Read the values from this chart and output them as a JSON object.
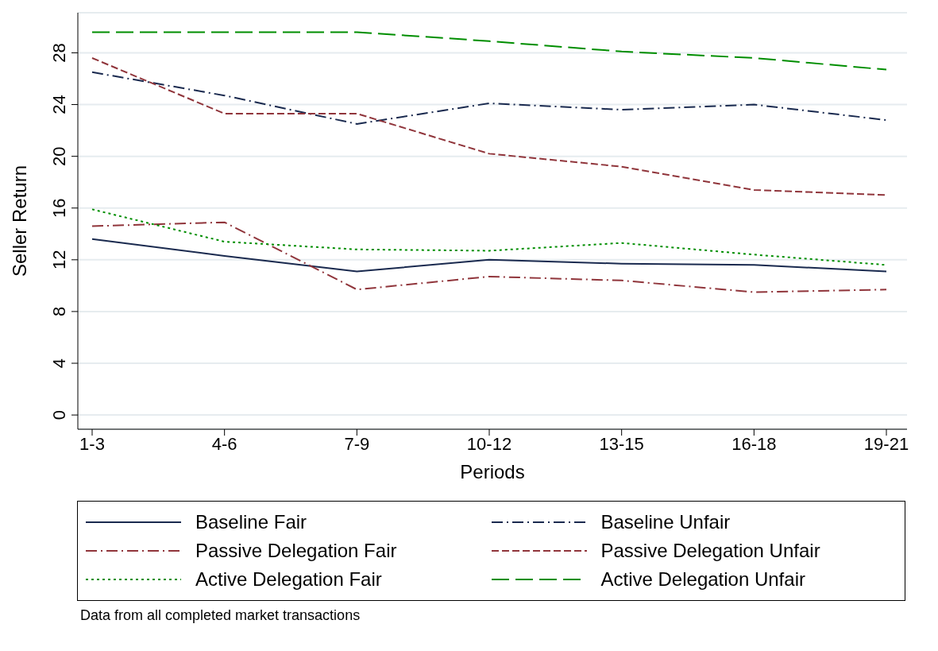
{
  "chart_data": {
    "type": "line",
    "categories": [
      "1-3",
      "4-6",
      "7-9",
      "10-12",
      "13-15",
      "16-18",
      "19-21"
    ],
    "xlabel": "Periods",
    "ylabel": "Seller Return",
    "ylim": [
      -1.1,
      31.1
    ],
    "yticks": [
      0,
      4,
      8,
      12,
      16,
      20,
      24,
      28
    ],
    "grid": "y",
    "legend": "bottom",
    "marker": "none",
    "series": [
      {
        "name": "Baseline Fair",
        "color": "#1a2a4f",
        "line_style": "solid",
        "values": [
          13.6,
          12.3,
          11.1,
          12.0,
          11.7,
          11.6,
          11.1
        ]
      },
      {
        "name": "Baseline Unfair",
        "color": "#1a2a4f",
        "line_style": "dashdot",
        "values": [
          26.5,
          24.7,
          22.5,
          24.1,
          23.6,
          24.0,
          22.8
        ]
      },
      {
        "name": "Passive Delegation Fair",
        "color": "#90353b",
        "line_style": "dashdot",
        "values": [
          14.6,
          14.9,
          9.7,
          10.7,
          10.4,
          9.5,
          9.7
        ]
      },
      {
        "name": "Passive Delegation Unfair",
        "color": "#90353b",
        "line_style": "dashed",
        "values": [
          27.6,
          23.3,
          23.3,
          20.2,
          19.2,
          17.4,
          17.0
        ]
      },
      {
        "name": "Active Delegation Fair",
        "color": "#008e00",
        "line_style": "dotted",
        "values": [
          15.9,
          13.4,
          12.8,
          12.7,
          13.3,
          12.4,
          11.6
        ]
      },
      {
        "name": "Active Delegation Unfair",
        "color": "#008e00",
        "line_style": "longdash",
        "values": [
          29.6,
          29.6,
          29.6,
          28.9,
          28.1,
          27.6,
          26.7
        ]
      }
    ],
    "annotations": [
      "Data from all completed market transactions"
    ]
  }
}
